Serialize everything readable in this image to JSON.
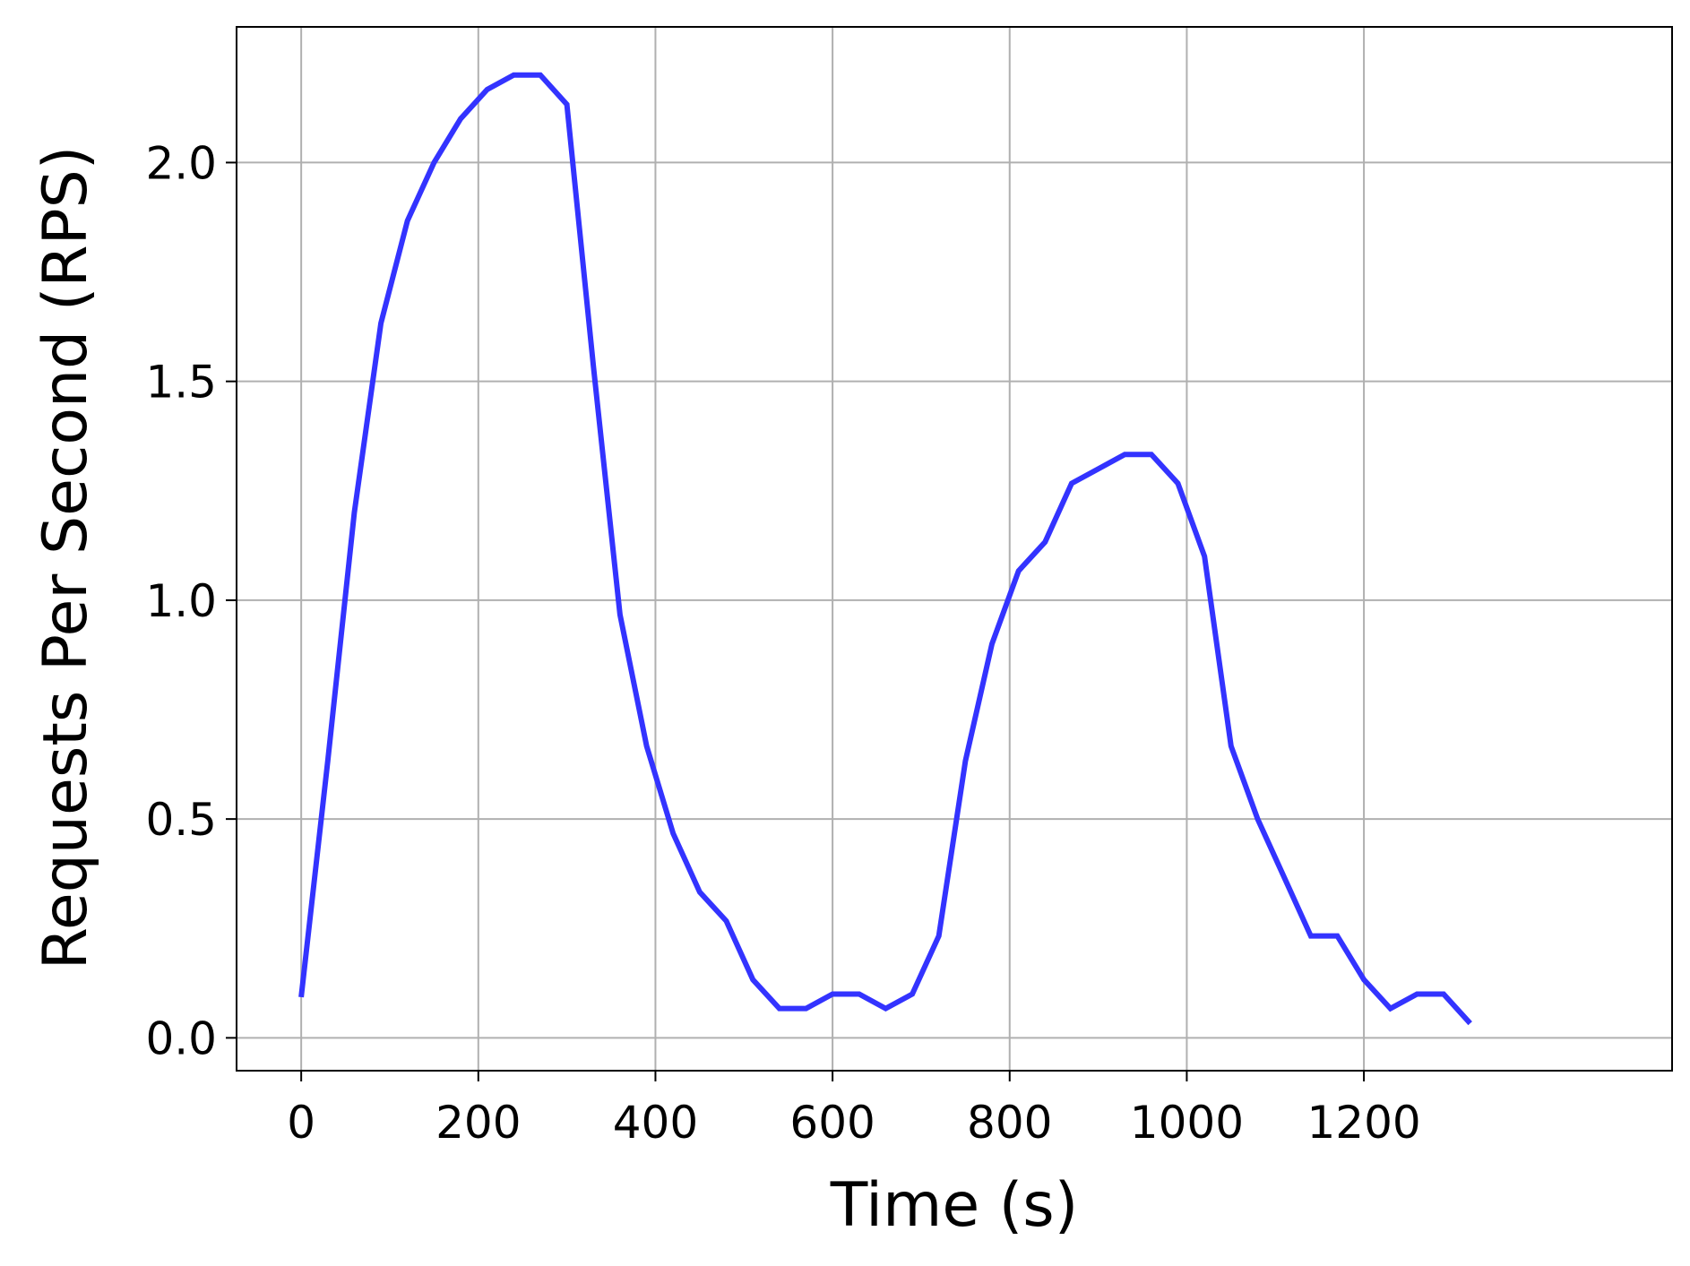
{
  "chart_data": {
    "type": "line",
    "title": "",
    "xlabel": "Time (s)",
    "ylabel": "Requests Per Second (RPS)",
    "xlim": [
      -73,
      1548
    ],
    "ylim": [
      -0.075,
      2.31
    ],
    "grid": true,
    "legend": "none",
    "x_ticks": [
      0,
      200,
      400,
      600,
      800,
      1000,
      1200
    ],
    "x_tick_labels": [
      "0",
      "200",
      "400",
      "600",
      "800",
      "1000",
      "1200"
    ],
    "y_ticks": [
      0.0,
      0.5,
      1.0,
      1.5,
      2.0
    ],
    "y_tick_labels": [
      "0.0",
      "0.5",
      "1.0",
      "1.5",
      "2.0"
    ],
    "colors": {
      "line": "#3333ff",
      "grid": "#b0b0b0",
      "axes": "#000000",
      "background": "#ffffff"
    },
    "series": [
      {
        "x": [
          0,
          30,
          60,
          90,
          120,
          150,
          180,
          210,
          240,
          270,
          300,
          330,
          360,
          390,
          420,
          450,
          480,
          510,
          540,
          570,
          600,
          630,
          660,
          690,
          720,
          750,
          780,
          810,
          840,
          870,
          900,
          930,
          960,
          990,
          1020,
          1050,
          1080,
          1110,
          1140,
          1170,
          1200,
          1230,
          1260,
          1290,
          1320
        ],
        "y": [
          0.093,
          0.633,
          1.2,
          1.633,
          1.867,
          2.0,
          2.1,
          2.167,
          2.2,
          2.2,
          2.133,
          1.533,
          0.967,
          0.667,
          0.467,
          0.333,
          0.267,
          0.133,
          0.067,
          0.067,
          0.1,
          0.1,
          0.067,
          0.1,
          0.233,
          0.633,
          0.9,
          1.067,
          1.133,
          1.267,
          1.3,
          1.333,
          1.333,
          1.267,
          1.1,
          0.667,
          0.5,
          0.367,
          0.233,
          0.233,
          0.133,
          0.067,
          0.1,
          0.1,
          0.033
        ]
      }
    ]
  }
}
